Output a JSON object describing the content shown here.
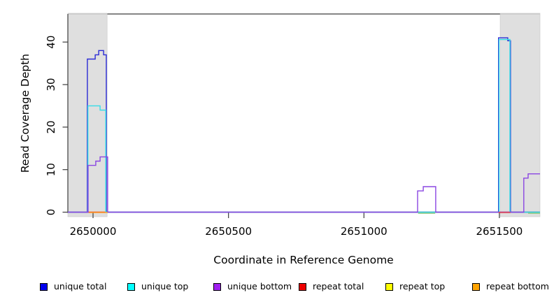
{
  "chart_data": {
    "type": "line",
    "subtype": "step-coverage",
    "title": "",
    "xlabel": "Coordinate in Reference Genome",
    "ylabel": "Read Coverage Depth",
    "x_range": [
      2649907,
      2651650
    ],
    "y_range": [
      0,
      46.6
    ],
    "grid": false,
    "x_ticks": [
      {
        "value": 2650000,
        "label": "2650000"
      },
      {
        "value": 2650500,
        "label": "2650500"
      },
      {
        "value": 2651000,
        "label": "2651000"
      },
      {
        "value": 2651500,
        "label": "2651500"
      }
    ],
    "y_ticks": [
      {
        "value": 0,
        "label": "0"
      },
      {
        "value": 10,
        "label": "10"
      },
      {
        "value": 20,
        "label": "20"
      },
      {
        "value": 30,
        "label": "30"
      },
      {
        "value": 40,
        "label": "40"
      }
    ],
    "shaded_regions": [
      {
        "name": "shaded-region-left",
        "x": [
          2649907,
          2650052
        ],
        "color": "#dbdbdb"
      },
      {
        "name": "shaded-region-right",
        "x": [
          2651503,
          2651650
        ],
        "color": "#dbdbdb"
      }
    ],
    "series": [
      {
        "name": "repeat bottom",
        "color": "#ffa020",
        "legend_color": "#ffa500",
        "points": [
          [
            2649907,
            0
          ],
          [
            2651650,
            0
          ]
        ]
      },
      {
        "name": "repeat top",
        "color": "#f0ec55",
        "legend_color": "#ffff00",
        "points": [
          [
            2649907,
            0
          ],
          [
            2651650,
            0
          ]
        ]
      },
      {
        "name": "repeat total",
        "color": "#e84040",
        "legend_color": "#ee0000",
        "points": [
          [
            2649907,
            0
          ],
          [
            2651650,
            0
          ]
        ]
      },
      {
        "name": "unique total",
        "color": "#2b2bd5",
        "legend_color": "#0000ee",
        "points": [
          [
            2649907,
            0
          ],
          [
            2649979,
            0
          ],
          [
            2649979,
            36
          ],
          [
            2650008,
            36
          ],
          [
            2650008,
            37
          ],
          [
            2650021,
            37
          ],
          [
            2650021,
            38
          ],
          [
            2650039,
            38
          ],
          [
            2650039,
            37
          ],
          [
            2650049,
            37
          ],
          [
            2650049,
            0
          ],
          [
            2651497,
            0
          ],
          [
            2651497,
            41
          ],
          [
            2651531,
            41
          ],
          [
            2651531,
            40.3
          ],
          [
            2651541,
            40.3
          ],
          [
            2651541,
            0
          ],
          [
            2651650,
            0
          ]
        ]
      },
      {
        "name": "unique top",
        "color": "#35dde8",
        "legend_color": "#00ffff",
        "points": [
          [
            2649907,
            0
          ],
          [
            2649981,
            0
          ],
          [
            2649981,
            25
          ],
          [
            2650026,
            25
          ],
          [
            2650026,
            24
          ],
          [
            2650047,
            24
          ],
          [
            2650047,
            0
          ],
          [
            2651499,
            0
          ],
          [
            2651499,
            40.6
          ],
          [
            2651539,
            40.6
          ],
          [
            2651539,
            0
          ],
          [
            2651650,
            0
          ]
        ]
      },
      {
        "name": "unique bottom",
        "color": "#8a46e2",
        "legend_color": "#a020f0",
        "points": [
          [
            2649907,
            0
          ],
          [
            2649982,
            0
          ],
          [
            2649982,
            11
          ],
          [
            2650010,
            11
          ],
          [
            2650010,
            12
          ],
          [
            2650026,
            12
          ],
          [
            2650026,
            13
          ],
          [
            2650054,
            13
          ],
          [
            2650054,
            0
          ],
          [
            2651198,
            0
          ],
          [
            2651198,
            5
          ],
          [
            2651219,
            5
          ],
          [
            2651219,
            6
          ],
          [
            2651265,
            6
          ],
          [
            2651265,
            0
          ],
          [
            2651590,
            0
          ],
          [
            2651590,
            8
          ],
          [
            2651606,
            8
          ],
          [
            2651606,
            9
          ],
          [
            2651650,
            9
          ]
        ]
      }
    ],
    "baseline_overlays": [
      {
        "series": "repeat bottom",
        "color": "#ffa020",
        "x": [
          2649985,
          2650054
        ]
      },
      {
        "series": "repeat total",
        "color": "#e84040",
        "x": [
          2651497,
          2651541
        ]
      },
      {
        "series": "overlap-artifact",
        "color": "#8ecf7a",
        "x": [
          2651200,
          2651263
        ]
      },
      {
        "series": "overlap-artifact",
        "color": "#8ecf7a",
        "x": [
          2651606,
          2651650
        ]
      }
    ],
    "legend": {
      "position": "bottom",
      "items": [
        {
          "label": "unique total",
          "color": "#0000ee"
        },
        {
          "label": "unique top",
          "color": "#00ffff"
        },
        {
          "label": "unique bottom",
          "color": "#a020f0"
        },
        {
          "label": "repeat total",
          "color": "#ee0000"
        },
        {
          "label": "repeat top",
          "color": "#ffff00"
        },
        {
          "label": "repeat bottom",
          "color": "#ffa500"
        }
      ]
    }
  }
}
